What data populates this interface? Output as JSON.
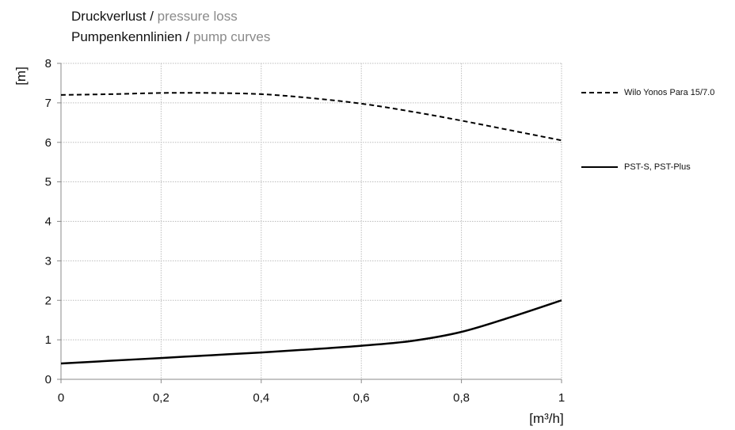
{
  "title": {
    "line1_de": "Druckverlust",
    "line1_sep": " / ",
    "line1_en": "pressure loss",
    "line2_de": "Pumpenkennlinien",
    "line2_sep": " / ",
    "line2_en": "pump curves"
  },
  "chart_data": {
    "type": "line",
    "title": "Druckverlust / pressure loss — Pumpenkennlinien / pump curves",
    "xlabel": "[m³/h]",
    "ylabel": "[m]",
    "xlim": [
      0,
      1
    ],
    "ylim": [
      0,
      8
    ],
    "x_ticks": [
      0,
      0.2,
      0.4,
      0.6,
      0.8,
      1
    ],
    "x_tick_labels": [
      "0",
      "0,2",
      "0,4",
      "0,6",
      "0,8",
      "1"
    ],
    "y_ticks": [
      0,
      1,
      2,
      3,
      4,
      5,
      6,
      7,
      8
    ],
    "y_tick_labels": [
      "0",
      "1",
      "2",
      "3",
      "4",
      "5",
      "6",
      "7",
      "8"
    ],
    "grid": true,
    "legend_position": "right",
    "series": [
      {
        "name": "Wilo Yonos Para 15/7.0",
        "style": "dashed",
        "color": "#000000",
        "x": [
          0,
          0.1,
          0.2,
          0.3,
          0.4,
          0.5,
          0.6,
          0.7,
          0.8,
          0.9,
          1.0
        ],
        "y": [
          7.2,
          7.22,
          7.25,
          7.25,
          7.22,
          7.12,
          6.98,
          6.78,
          6.55,
          6.3,
          6.05
        ]
      },
      {
        "name": "PST-S, PST-Plus",
        "style": "solid",
        "color": "#000000",
        "x": [
          0,
          0.1,
          0.2,
          0.3,
          0.4,
          0.5,
          0.6,
          0.7,
          0.8,
          0.9,
          1.0
        ],
        "y": [
          0.4,
          0.47,
          0.54,
          0.61,
          0.68,
          0.76,
          0.85,
          0.97,
          1.2,
          1.58,
          2.0
        ]
      }
    ]
  }
}
